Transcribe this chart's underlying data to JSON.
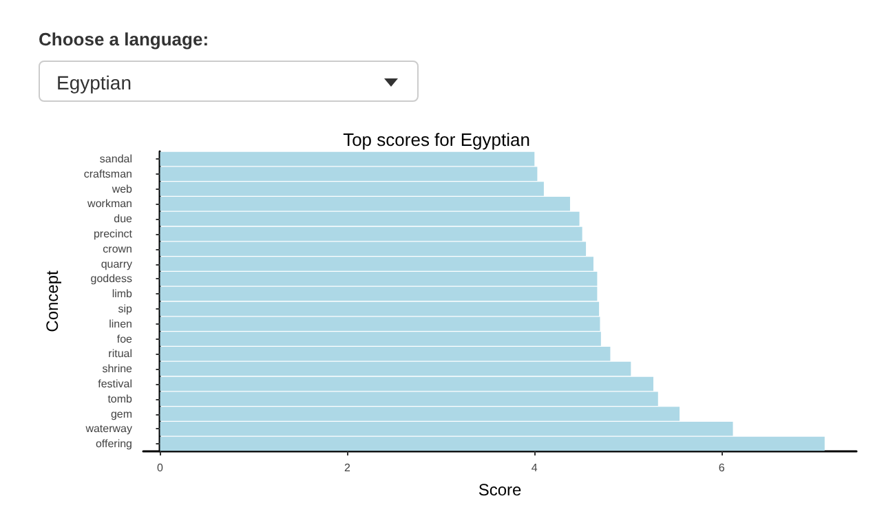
{
  "chart_data": {
    "type": "bar",
    "orientation": "horizontal",
    "title": "Top scores for Egyptian",
    "xlabel": "Score",
    "ylabel": "Concept",
    "annotations": [
      "Choose a language:",
      "Egyptian"
    ],
    "categories": [
      "sandal",
      "craftsman",
      "web",
      "workman",
      "due",
      "precinct",
      "crown",
      "quarry",
      "goddess",
      "limb",
      "sip",
      "linen",
      "foe",
      "ritual",
      "shrine",
      "festival",
      "tomb",
      "gem",
      "waterway",
      "offering"
    ],
    "values": [
      4.0,
      4.03,
      4.1,
      4.38,
      4.48,
      4.51,
      4.55,
      4.63,
      4.67,
      4.67,
      4.69,
      4.7,
      4.71,
      4.81,
      5.03,
      5.27,
      5.32,
      5.55,
      6.12,
      7.1
    ],
    "color": "#add8e6",
    "xlim": [
      -0.18,
      7.44
    ],
    "xticks": [
      0,
      2,
      4,
      6
    ],
    "grid": false
  }
}
